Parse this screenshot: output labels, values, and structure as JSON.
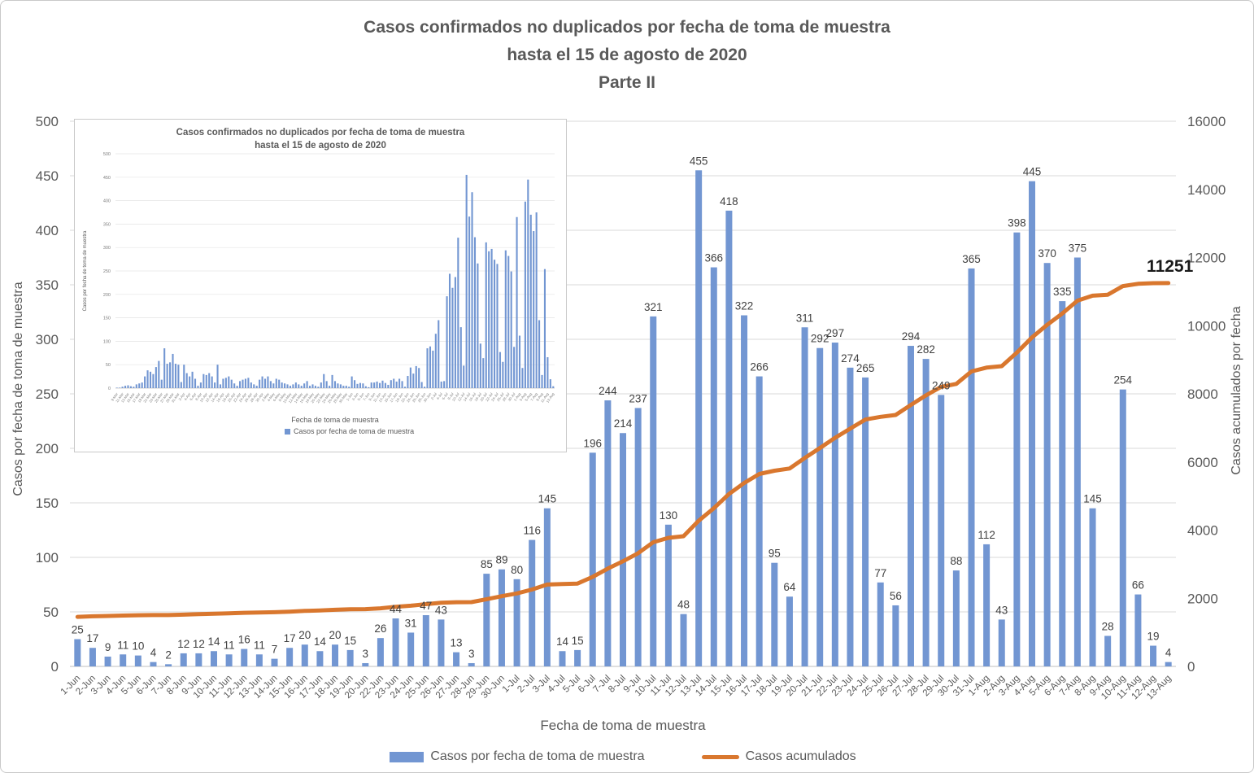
{
  "title": {
    "line1": "Casos confirmados no duplicados por fecha de toma de muestra",
    "line2": "hasta el 15 de agosto de 2020",
    "line3": "Parte II"
  },
  "axes": {
    "left_title": "Casos por fecha de toma de muestra",
    "right_title": "Casos acumulados por fecha",
    "x_title": "Fecha de toma de muestra"
  },
  "legend": {
    "bar_label": "Casos por fecha de toma de muestra",
    "line_label": "Casos acumulados"
  },
  "colors": {
    "bar": "#7296D2",
    "line": "#D9772E",
    "text": "#595959",
    "data_label": "#404040",
    "grid": "#D9D9D9",
    "axis_line": "#BFBFBF",
    "end_label": "#1A1A1A"
  },
  "chart_data": [
    {
      "type": "bar",
      "title": "Casos confirmados no duplicados por fecha de toma de muestra hasta el 15 de agosto de 2020 - Parte II",
      "xlabel": "Fecha de toma de muestra",
      "grid": true,
      "legend_position": "bottom",
      "left_axis": {
        "label": "Casos por fecha de toma de muestra",
        "min": 0,
        "max": 500,
        "step": 50
      },
      "right_axis": {
        "label": "Casos acumulados por fecha",
        "min": 0,
        "max": 16000,
        "step": 2000
      },
      "categories": [
        "1-Jun",
        "2-Jun",
        "3-Jun",
        "4-Jun",
        "5-Jun",
        "6-Jun",
        "7-Jun",
        "8-Jun",
        "9-Jun",
        "10-Jun",
        "11-Jun",
        "12-Jun",
        "13-Jun",
        "14-Jun",
        "15-Jun",
        "16-Jun",
        "17-Jun",
        "18-Jun",
        "19-Jun",
        "20-Jun",
        "22-Jun",
        "23-Jun",
        "24-Jun",
        "25-Jun",
        "26-Jun",
        "27-Jun",
        "28-Jun",
        "29-Jun",
        "30-Jun",
        "1-Jul",
        "2-Jul",
        "3-Jul",
        "4-Jul",
        "5-Jul",
        "6-Jul",
        "7-Jul",
        "8-Jul",
        "9-Jul",
        "10-Jul",
        "11-Jul",
        "12-Jul",
        "13-Jul",
        "14-Jul",
        "15-Jul",
        "16-Jul",
        "17-Jul",
        "18-Jul",
        "19-Jul",
        "20-Jul",
        "21-Jul",
        "22-Jul",
        "23-Jul",
        "24-Jul",
        "25-Jul",
        "26-Jul",
        "27-Jul",
        "28-Jul",
        "29-Jul",
        "30-Jul",
        "31-Jul",
        "1-Aug",
        "2-Aug",
        "3-Aug",
        "4-Aug",
        "5-Aug",
        "6-Aug",
        "7-Aug",
        "8-Aug",
        "9-Aug",
        "10-Aug",
        "11-Aug",
        "12-Aug",
        "13-Aug"
      ],
      "series": [
        {
          "name": "Casos por fecha de toma de muestra",
          "type": "bar",
          "axis": "left",
          "values": [
            25,
            17,
            9,
            11,
            10,
            4,
            2,
            12,
            12,
            14,
            11,
            16,
            11,
            7,
            17,
            20,
            14,
            20,
            15,
            3,
            26,
            44,
            31,
            47,
            43,
            13,
            3,
            85,
            89,
            80,
            116,
            145,
            14,
            15,
            196,
            244,
            214,
            237,
            321,
            130,
            48,
            455,
            366,
            418,
            322,
            266,
            95,
            64,
            311,
            292,
            297,
            274,
            265,
            77,
            56,
            294,
            282,
            249,
            88,
            365,
            112,
            43,
            398,
            445,
            370,
            335,
            375,
            145,
            28,
            254,
            66,
            19,
            4
          ]
        },
        {
          "name": "Casos acumulados",
          "type": "line",
          "axis": "right",
          "values": [
            1455,
            1472,
            1481,
            1492,
            1502,
            1506,
            1508,
            1520,
            1532,
            1546,
            1557,
            1573,
            1584,
            1591,
            1608,
            1628,
            1642,
            1662,
            1677,
            1680,
            1706,
            1750,
            1781,
            1828,
            1871,
            1884,
            1887,
            1972,
            2061,
            2141,
            2257,
            2402,
            2416,
            2431,
            2627,
            2871,
            3085,
            3322,
            3643,
            3773,
            3821,
            4276,
            4642,
            5060,
            5382,
            5648,
            5743,
            5807,
            6118,
            6410,
            6707,
            6981,
            7246,
            7323,
            7379,
            7673,
            7955,
            8204,
            8292,
            8657,
            8769,
            8812,
            9210,
            9655,
            10025,
            10360,
            10735,
            10880,
            10908,
            11162,
            11228,
            11247,
            11251
          ]
        }
      ],
      "end_annotation": "11251"
    },
    {
      "type": "bar",
      "title": "Casos confirmados no duplicados por fecha de toma de muestra hasta el 15 de agosto de 2020",
      "xlabel": "Fecha de toma de muestra",
      "ylabel": "Casos por fecha de toma de muestra",
      "grid": true,
      "legend_position": "bottom",
      "left_axis": {
        "min": 0,
        "max": 500,
        "step": 50
      },
      "categories": [
        "9-Mar",
        "10-Mar",
        "11-Mar",
        "12-Mar",
        "13-Mar",
        "14-Mar",
        "15-Mar",
        "16-Mar",
        "17-Mar",
        "18-Mar",
        "19-Mar",
        "20-Mar",
        "21-Mar",
        "22-Mar",
        "23-Mar",
        "24-Mar",
        "25-Mar",
        "26-Mar",
        "27-Mar",
        "28-Mar",
        "29-Mar",
        "30-Mar",
        "31-Mar",
        "1-Apr",
        "2-Apr",
        "3-Apr",
        "4-Apr",
        "5-Apr",
        "6-Apr",
        "7-Apr",
        "8-Apr",
        "9-Apr",
        "10-Apr",
        "11-Apr",
        "12-Apr",
        "13-Apr",
        "14-Apr",
        "15-Apr",
        "16-Apr",
        "17-Apr",
        "18-Apr",
        "19-Apr",
        "20-Apr",
        "21-Apr",
        "22-Apr",
        "23-Apr",
        "24-Apr",
        "25-Apr",
        "26-Apr",
        "27-Apr",
        "28-Apr",
        "29-Apr",
        "30-Apr",
        "1-May",
        "2-May",
        "3-May",
        "4-May",
        "5-May",
        "6-May",
        "7-May",
        "8-May",
        "9-May",
        "10-May",
        "11-May",
        "12-May",
        "13-May",
        "14-May",
        "15-May",
        "16-May",
        "17-May",
        "18-May",
        "19-May",
        "20-May",
        "21-May",
        "22-May",
        "23-May",
        "24-May",
        "25-May",
        "26-May",
        "27-May",
        "28-May",
        "29-May",
        "30-May",
        "31-May",
        "1-Jun",
        "2-Jun",
        "3-Jun",
        "4-Jun",
        "5-Jun",
        "6-Jun",
        "7-Jun",
        "8-Jun",
        "9-Jun",
        "10-Jun",
        "11-Jun",
        "12-Jun",
        "13-Jun",
        "14-Jun",
        "15-Jun",
        "16-Jun",
        "17-Jun",
        "18-Jun",
        "19-Jun",
        "20-Jun",
        "22-Jun",
        "23-Jun",
        "24-Jun",
        "25-Jun",
        "26-Jun",
        "27-Jun",
        "28-Jun",
        "29-Jun",
        "30-Jun",
        "1-Jul",
        "2-Jul",
        "3-Jul",
        "4-Jul",
        "5-Jul",
        "6-Jul",
        "7-Jul",
        "8-Jul",
        "9-Jul",
        "10-Jul",
        "11-Jul",
        "12-Jul",
        "13-Jul",
        "14-Jul",
        "15-Jul",
        "16-Jul",
        "17-Jul",
        "18-Jul",
        "19-Jul",
        "20-Jul",
        "21-Jul",
        "22-Jul",
        "23-Jul",
        "24-Jul",
        "25-Jul",
        "26-Jul",
        "27-Jul",
        "28-Jul",
        "29-Jul",
        "30-Jul",
        "31-Jul",
        "1-Aug",
        "2-Aug",
        "3-Aug",
        "4-Aug",
        "5-Aug",
        "6-Aug",
        "7-Aug",
        "8-Aug",
        "9-Aug",
        "10-Aug",
        "11-Aug",
        "12-Aug",
        "13-Aug"
      ],
      "series": [
        {
          "name": "Casos por fecha de toma de muestra",
          "type": "bar",
          "axis": "left",
          "values": [
            1,
            1,
            3,
            5,
            6,
            4,
            3,
            8,
            10,
            12,
            25,
            38,
            35,
            30,
            45,
            58,
            18,
            85,
            52,
            55,
            73,
            52,
            50,
            13,
            50,
            32,
            25,
            35,
            20,
            5,
            12,
            30,
            28,
            32,
            25,
            12,
            50,
            8,
            20,
            22,
            25,
            18,
            10,
            5,
            15,
            18,
            20,
            22,
            12,
            8,
            5,
            18,
            25,
            20,
            25,
            15,
            10,
            20,
            18,
            12,
            10,
            8,
            5,
            8,
            12,
            8,
            5,
            10,
            15,
            5,
            8,
            5,
            3,
            12,
            30,
            15,
            5,
            28,
            15,
            10,
            8,
            5,
            5,
            3,
            25,
            17,
            9,
            11,
            10,
            4,
            2,
            12,
            12,
            14,
            11,
            16,
            11,
            7,
            17,
            20,
            14,
            20,
            15,
            3,
            26,
            44,
            31,
            47,
            43,
            13,
            3,
            85,
            89,
            80,
            116,
            145,
            14,
            15,
            196,
            244,
            214,
            237,
            321,
            130,
            48,
            455,
            366,
            418,
            322,
            266,
            95,
            64,
            311,
            292,
            297,
            274,
            265,
            77,
            56,
            294,
            282,
            249,
            88,
            365,
            112,
            43,
            398,
            445,
            370,
            335,
            375,
            145,
            28,
            254,
            66,
            19,
            4
          ]
        }
      ]
    }
  ],
  "inset": {
    "title_line1": "Casos confirmados no duplicados por fecha de toma de muestra",
    "title_line2": "hasta el 15 de agosto de 2020",
    "y_title": "Casos por fecha de toma de muestra",
    "x_title": "Fecha de toma de muestra",
    "legend_label": "Casos por fecha de toma de muestra"
  }
}
